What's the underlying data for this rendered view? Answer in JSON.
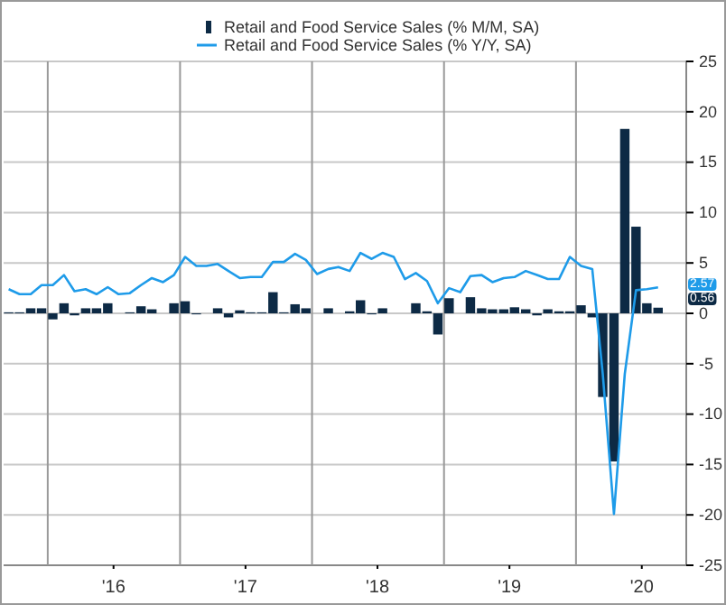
{
  "chart_data": {
    "type": "bar",
    "x": [
      "2015-09-15",
      "2015-10-15",
      "2015-11-15",
      "2015-12-15",
      "2016-01-15",
      "2016-02-15",
      "2016-03-15",
      "2016-04-15",
      "2016-05-15",
      "2016-06-15",
      "2016-07-15",
      "2016-08-15",
      "2016-09-15",
      "2016-10-15",
      "2016-11-15",
      "2016-12-15",
      "2017-01-15",
      "2017-02-15",
      "2017-03-15",
      "2017-04-15",
      "2017-05-15",
      "2017-06-15",
      "2017-07-15",
      "2017-08-15",
      "2017-09-15",
      "2017-10-15",
      "2017-11-15",
      "2017-12-15",
      "2018-01-15",
      "2018-02-15",
      "2018-03-15",
      "2018-04-15",
      "2018-05-15",
      "2018-06-15",
      "2018-07-15",
      "2018-08-15",
      "2018-09-15",
      "2018-10-15",
      "2018-11-15",
      "2018-12-15",
      "2019-01-15",
      "2019-02-15",
      "2019-03-15",
      "2019-04-15",
      "2019-05-15",
      "2019-06-15",
      "2019-07-15",
      "2019-08-15",
      "2019-09-15",
      "2019-10-15",
      "2019-11-15",
      "2019-12-15",
      "2020-01-15",
      "2020-02-15",
      "2020-03-15",
      "2020-04-15",
      "2020-05-15",
      "2020-06-15",
      "2020-07-15",
      "2020-08-15"
    ],
    "series": [
      {
        "name": "Retail and Food Service Sales (% M/M, SA)",
        "color": "#0d2a45",
        "values": [
          0.1,
          0.1,
          0.5,
          0.5,
          -0.6,
          1.0,
          -0.2,
          0.5,
          0.5,
          1.0,
          0.0,
          0.1,
          0.7,
          0.4,
          0.0,
          1.0,
          1.2,
          -0.1,
          0.0,
          0.5,
          -0.4,
          0.3,
          0.1,
          0.1,
          2.1,
          0.1,
          0.9,
          0.5,
          0.0,
          0.5,
          0.0,
          0.2,
          1.3,
          -0.1,
          0.5,
          0.0,
          0.0,
          1.0,
          0.2,
          -2.1,
          1.5,
          0.0,
          1.6,
          0.5,
          0.4,
          0.4,
          0.6,
          0.4,
          -0.2,
          0.4,
          0.2,
          0.2,
          0.8,
          -0.4,
          -8.3,
          -14.7,
          18.3,
          8.6,
          1.0,
          0.56
        ]
      },
      {
        "name": "Retail and Food Service Sales (% Y/Y, SA)",
        "type": "line",
        "color": "#1e9be9",
        "values": [
          2.4,
          1.9,
          1.9,
          2.8,
          2.8,
          3.8,
          2.2,
          2.4,
          1.9,
          2.6,
          1.9,
          2.0,
          2.8,
          3.5,
          3.1,
          3.8,
          5.6,
          4.7,
          4.7,
          4.9,
          4.2,
          3.5,
          3.6,
          3.6,
          5.1,
          5.1,
          5.9,
          5.3,
          3.9,
          4.4,
          4.6,
          4.2,
          6.0,
          5.4,
          6.0,
          5.6,
          3.4,
          4.0,
          3.2,
          1.0,
          2.5,
          2.1,
          3.7,
          3.8,
          3.1,
          3.5,
          3.6,
          4.2,
          3.8,
          3.4,
          3.4,
          5.6,
          4.7,
          4.4,
          -6,
          -19.9,
          -6,
          2.3,
          2.4,
          2.57
        ]
      }
    ],
    "xlim": [
      "2015-09-01",
      "2020-11-01"
    ],
    "xticks": [
      {
        "value": "2016-01-01",
        "label": null
      },
      {
        "value": "2016-07-01",
        "label": "'16"
      },
      {
        "value": "2017-01-01",
        "label": null
      },
      {
        "value": "2017-07-01",
        "label": "'17"
      },
      {
        "value": "2018-01-01",
        "label": null
      },
      {
        "value": "2018-07-01",
        "label": "'18"
      },
      {
        "value": "2019-01-01",
        "label": null
      },
      {
        "value": "2019-07-01",
        "label": "'19"
      },
      {
        "value": "2020-01-01",
        "label": null
      },
      {
        "value": "2020-07-01",
        "label": "'20"
      }
    ],
    "ylim": [
      -25,
      25
    ],
    "yticks": [
      -25,
      -20,
      -15,
      -10,
      -5,
      0,
      5,
      10,
      15,
      20,
      25
    ],
    "grid": true,
    "legend": "top",
    "annotations": [
      "0.56",
      "2.57"
    ]
  }
}
